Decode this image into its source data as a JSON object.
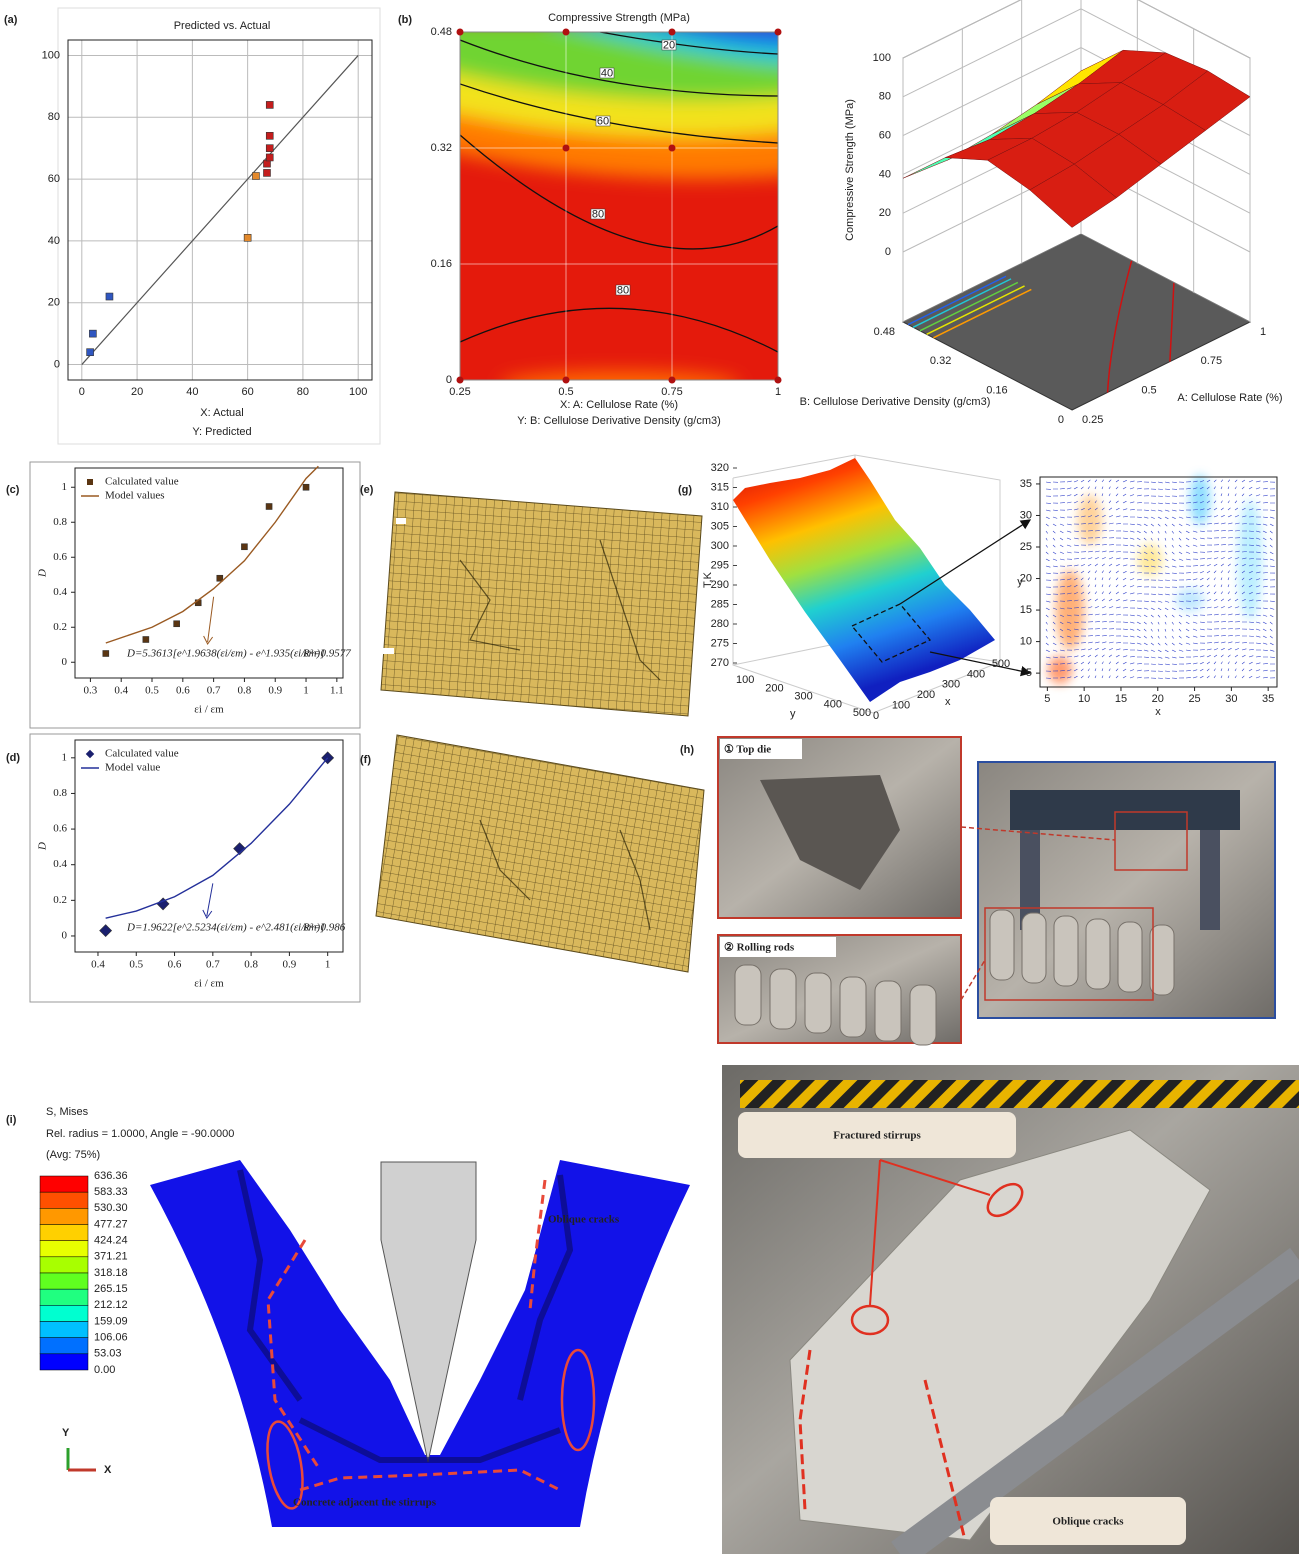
{
  "panel_labels": [
    "(a)",
    "(b)",
    "(c)",
    "(d)",
    "(e)",
    "(f)",
    "(g)",
    "(h)",
    "(i)"
  ],
  "chart_data": [
    {
      "type": "scatter",
      "title": "Predicted vs. Actual",
      "x_label": "X: Actual",
      "y_label": "Y: Predicted",
      "xlim": [
        -5,
        105
      ],
      "ylim": [
        -5,
        105
      ],
      "xticks": [
        0,
        20,
        40,
        60,
        80,
        100
      ],
      "yticks": [
        0,
        20,
        40,
        60,
        80,
        100
      ],
      "grid": true,
      "identity_line": true,
      "series": [
        {
          "color": "#2f56c0",
          "marker": "square",
          "x": [
            3,
            4,
            10
          ],
          "values": [
            4,
            10,
            22
          ]
        },
        {
          "color": "#e3892c",
          "marker": "square",
          "x": [
            60,
            63
          ],
          "values": [
            41,
            61
          ]
        },
        {
          "color": "#c41d1d",
          "marker": "square",
          "x": [
            67,
            67,
            68,
            68,
            68,
            68
          ],
          "values": [
            62,
            65,
            67,
            70,
            74,
            84
          ]
        }
      ]
    },
    {
      "type": "contour",
      "title": "Compressive Strength (MPa)",
      "x_label": "X: A: Cellulose Rate (%)",
      "y_label": "Y: B: Cellulose Derivative Density (g/cm3)",
      "xlim": [
        0.25,
        1
      ],
      "ylim": [
        0,
        0.48
      ],
      "xticks": [
        0.25,
        0.5,
        0.75,
        1
      ],
      "yticks": [
        0,
        0.16,
        0.32,
        0.48
      ],
      "grid": true,
      "contour_levels": [
        20,
        40,
        60,
        80,
        80
      ],
      "design_points": {
        "color": "#b01010",
        "x": [
          0.25,
          0.5,
          0.75,
          1,
          0.5,
          0.75,
          0.25,
          0.5,
          0.75,
          1
        ],
        "y": [
          0.48,
          0.48,
          0.48,
          0.48,
          0.32,
          0.32,
          0,
          0,
          0,
          0
        ]
      }
    },
    {
      "type": "surface",
      "z_label": "Compressive Strength (MPa)",
      "x_label": "A: Cellulose Rate (%)",
      "y_label": "B: Cellulose Derivative Density (g/cm3)",
      "xlim": [
        0.25,
        1
      ],
      "ylim": [
        0,
        0.48
      ],
      "zlim": [
        0,
        100
      ],
      "xticks": [
        0.25,
        0.5,
        0.75,
        1
      ],
      "yticks": [
        0,
        0.16,
        0.32,
        0.48
      ],
      "zticks": [
        0,
        20,
        40,
        60,
        80,
        100
      ],
      "grid_x": [
        0.25,
        0.4375,
        0.625,
        0.8125,
        1
      ],
      "grid_y": [
        0,
        0.12,
        0.24,
        0.36,
        0.48
      ],
      "z": [
        [
          58,
          62,
          68,
          74,
          80
        ],
        [
          66,
          68,
          72,
          76,
          82
        ],
        [
          70,
          70,
          72,
          76,
          80
        ],
        [
          60,
          58,
          60,
          64,
          70
        ],
        [
          38,
          36,
          38,
          42,
          48
        ]
      ]
    },
    {
      "type": "scatter",
      "x_label": "εi / εm",
      "y_label": "D",
      "xlim": [
        0.25,
        1.12
      ],
      "ylim": [
        -0.09,
        1.11
      ],
      "xticks": [
        0.3,
        0.4,
        0.5,
        0.6,
        0.7,
        0.8,
        0.9,
        1.0,
        1.1
      ],
      "yticks": [
        0.0,
        0.2,
        0.4,
        0.6,
        0.8,
        1.0
      ],
      "grid": false,
      "equation": "D=5.3613[e^1.9638(εi/εm) - e^1.935(εi/εm)]",
      "r2": "R²=0.9577",
      "series": [
        {
          "name": "Calculated value",
          "color": "#5a3512",
          "marker": "square",
          "x": [
            0.35,
            0.48,
            0.58,
            0.65,
            0.72,
            0.8,
            0.88,
            1.0
          ],
          "values": [
            0.05,
            0.13,
            0.22,
            0.34,
            0.48,
            0.66,
            0.89,
            1.0
          ]
        },
        {
          "name": "Model values",
          "color": "#9a5a22",
          "line": true,
          "x": [
            0.35,
            0.5,
            0.6,
            0.7,
            0.8,
            0.9,
            1.0,
            1.04
          ],
          "values": [
            0.11,
            0.2,
            0.29,
            0.42,
            0.58,
            0.8,
            1.05,
            1.12
          ]
        }
      ]
    },
    {
      "type": "scatter",
      "x_label": "εi / εm",
      "y_label": "D",
      "xlim": [
        0.34,
        1.04
      ],
      "ylim": [
        -0.09,
        1.1
      ],
      "xticks": [
        0.4,
        0.5,
        0.6,
        0.7,
        0.8,
        0.9,
        1.0
      ],
      "yticks": [
        0.0,
        0.2,
        0.4,
        0.6,
        0.8,
        1.0
      ],
      "grid": false,
      "equation": "D=1.9622[e^2.5234(εi/εm) - e^2.481(εi/εm)]",
      "r2": "R²=0.986",
      "series": [
        {
          "name": "Calculated value",
          "color": "#1a1f6e",
          "marker": "diamond",
          "x": [
            0.42,
            0.57,
            0.77,
            1.0
          ],
          "values": [
            0.03,
            0.18,
            0.49,
            1.0
          ]
        },
        {
          "name": "Model value",
          "color": "#24309a",
          "line": true,
          "x": [
            0.42,
            0.5,
            0.6,
            0.7,
            0.8,
            0.9,
            1.0
          ],
          "values": [
            0.1,
            0.14,
            0.22,
            0.34,
            0.52,
            0.74,
            1.0
          ]
        }
      ]
    },
    {
      "type": "surface3d",
      "z_label": "T,K",
      "x_label": "x",
      "y_label": "y",
      "zlim": [
        270,
        320
      ],
      "xlim": [
        0,
        500
      ],
      "ylim": [
        0,
        500
      ],
      "zticks": [
        270,
        275,
        280,
        285,
        290,
        295,
        300,
        305,
        310,
        315,
        320
      ],
      "xticks": [
        0,
        100,
        200,
        300,
        400,
        500
      ],
      "yticks": [
        100,
        200,
        300,
        400,
        500
      ]
    },
    {
      "type": "vector",
      "x_label": "x",
      "y_label": "y",
      "xlim": [
        4,
        36.2
      ],
      "ylim": [
        2.8,
        36.1
      ],
      "xticks": [
        5,
        10,
        15,
        20,
        25,
        30,
        35
      ],
      "yticks": [
        5,
        10,
        15,
        20,
        25,
        30,
        35
      ]
    }
  ],
  "photos": {
    "top_die": "① Top die",
    "rolling_rods": "② Rolling rods"
  },
  "fea": {
    "title": "S, Mises",
    "subtitle": "Rel. radius = 1.0000, Angle = -90.0000",
    "avg": "(Avg: 75%)",
    "legend_values": [
      "636.36",
      "583.33",
      "530.30",
      "477.27",
      "424.24",
      "371.21",
      "318.18",
      "265.15",
      "212.12",
      "159.09",
      "106.06",
      "53.03",
      "0.00"
    ],
    "annotations": [
      "Oblique cracks",
      "Concrete adjacent the stirrups"
    ],
    "axis_y": "Y",
    "axis_x": "X"
  },
  "photo_i": {
    "annotations": [
      "Fractured stirrups",
      "Oblique cracks"
    ]
  }
}
